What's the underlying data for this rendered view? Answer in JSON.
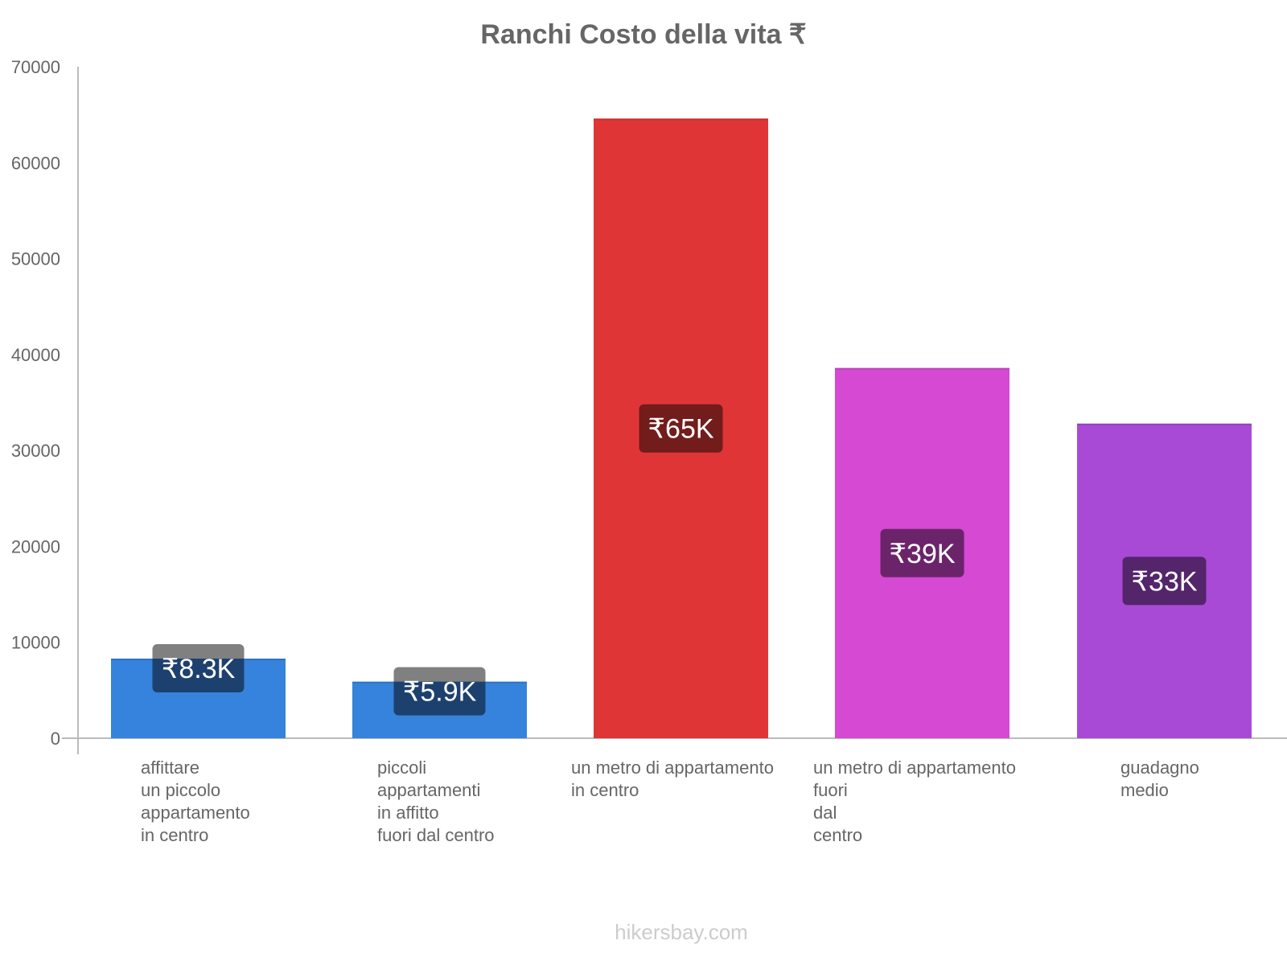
{
  "title": "Ranchi Costo della vita ₹",
  "watermark": "hikersbay.com",
  "colors": {
    "text": "#666666",
    "axis": "#bbbbbb",
    "watermark": "#cccccc"
  },
  "chart_data": {
    "type": "bar",
    "title": "Ranchi Costo della vita ₹",
    "xlabel": "",
    "ylabel": "",
    "ylim": [
      0,
      70000
    ],
    "yticks": [
      0,
      10000,
      20000,
      30000,
      40000,
      50000,
      60000,
      70000
    ],
    "grid": false,
    "legend": null,
    "categories": [
      "affittare un piccolo appartamento in centro",
      "piccoli appartamenti in affitto fuori dal centro",
      "un metro di appartamento in centro",
      "un metro di appartamento fuori dal centro",
      "guadagno medio"
    ],
    "category_lines": [
      [
        "affittare",
        "un piccolo",
        "appartamento",
        "in centro"
      ],
      [
        "piccoli",
        "appartamenti",
        "in affitto",
        "fuori dal centro"
      ],
      [
        "un metro di appartamento",
        "in centro"
      ],
      [
        "un metro di appartamento",
        "fuori",
        "dal",
        "centro"
      ],
      [
        "guadagno",
        "medio"
      ]
    ],
    "values": [
      8300,
      5900,
      64600,
      38600,
      32800
    ],
    "value_labels": [
      "₹8.3K",
      "₹5.9K",
      "₹65K",
      "₹39K",
      "₹33K"
    ],
    "bar_colors": [
      "#3583dc",
      "#3583dc",
      "#e03536",
      "#d649d2",
      "#a94ad6"
    ],
    "label_box_colors": [
      "#1d416e",
      "#1d416e",
      "#721c1c",
      "#6b246a",
      "#54256b"
    ]
  }
}
